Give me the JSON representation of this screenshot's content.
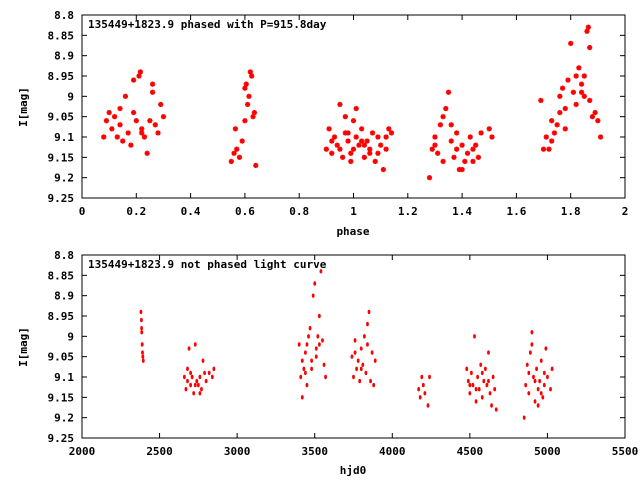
{
  "chart_data": [
    {
      "type": "scatter",
      "title": "135449+1823.9 phased with P=915.8day",
      "xlabel": "phase",
      "ylabel": "I[mag]",
      "xlim": [
        0,
        2
      ],
      "ylim": [
        9.25,
        8.8
      ],
      "y_inverted": true,
      "marker": "red-asterisk",
      "color": "#ff0000",
      "xticks": [
        "0",
        "0.2",
        "0.4",
        "0.6",
        "0.8",
        "1",
        "1.2",
        "1.4",
        "1.6",
        "1.8",
        "2"
      ],
      "yticks": [
        "8.8",
        "8.85",
        "8.9",
        "8.95",
        "9",
        "9.05",
        "9.1",
        "9.15",
        "9.2",
        "9.25"
      ],
      "points": [
        [
          0.08,
          9.1
        ],
        [
          0.09,
          9.06
        ],
        [
          0.1,
          9.04
        ],
        [
          0.11,
          9.08
        ],
        [
          0.12,
          9.05
        ],
        [
          0.13,
          9.1
        ],
        [
          0.14,
          9.07
        ],
        [
          0.15,
          9.11
        ],
        [
          0.16,
          9.0
        ],
        [
          0.17,
          9.09
        ],
        [
          0.18,
          9.12
        ],
        [
          0.19,
          9.04
        ],
        [
          0.2,
          9.06
        ],
        [
          0.21,
          8.95
        ],
        [
          0.215,
          8.94
        ],
        [
          0.22,
          9.09
        ],
        [
          0.23,
          9.1
        ],
        [
          0.24,
          9.14
        ],
        [
          0.25,
          9.06
        ],
        [
          0.26,
          8.99
        ],
        [
          0.27,
          9.07
        ],
        [
          0.28,
          9.09
        ],
        [
          0.29,
          9.02
        ],
        [
          0.3,
          9.05
        ],
        [
          0.19,
          8.96
        ],
        [
          0.26,
          8.97
        ],
        [
          0.14,
          9.03
        ],
        [
          0.22,
          9.08
        ],
        [
          0.55,
          9.16
        ],
        [
          0.56,
          9.14
        ],
        [
          0.565,
          9.08
        ],
        [
          0.57,
          9.13
        ],
        [
          0.58,
          9.15
        ],
        [
          0.59,
          9.11
        ],
        [
          0.6,
          9.06
        ],
        [
          0.605,
          8.97
        ],
        [
          0.61,
          9.02
        ],
        [
          0.615,
          9.0
        ],
        [
          0.62,
          8.94
        ],
        [
          0.625,
          8.95
        ],
        [
          0.63,
          9.05
        ],
        [
          0.635,
          9.04
        ],
        [
          0.64,
          9.17
        ],
        [
          0.6,
          8.98
        ],
        [
          0.9,
          9.13
        ],
        [
          0.91,
          9.08
        ],
        [
          0.92,
          9.14
        ],
        [
          0.93,
          9.1
        ],
        [
          0.94,
          9.12
        ],
        [
          0.95,
          9.02
        ],
        [
          0.96,
          9.15
        ],
        [
          0.97,
          9.09
        ],
        [
          0.98,
          9.11
        ],
        [
          0.99,
          9.14
        ],
        [
          1.0,
          9.06
        ],
        [
          1.01,
          9.1
        ],
        [
          1.02,
          9.12
        ],
        [
          1.03,
          9.08
        ],
        [
          1.04,
          9.15
        ],
        [
          1.05,
          9.11
        ],
        [
          1.06,
          9.13
        ],
        [
          1.07,
          9.09
        ],
        [
          1.08,
          9.16
        ],
        [
          1.09,
          9.14
        ],
        [
          1.1,
          9.12
        ],
        [
          1.11,
          9.18
        ],
        [
          1.12,
          9.1
        ],
        [
          1.13,
          9.08
        ],
        [
          0.92,
          9.11
        ],
        [
          0.95,
          9.13
        ],
        [
          0.98,
          9.09
        ],
        [
          1.0,
          9.13
        ],
        [
          1.03,
          9.11
        ],
        [
          1.06,
          9.14
        ],
        [
          1.09,
          9.1
        ],
        [
          1.12,
          9.13
        ],
        [
          0.97,
          9.05
        ],
        [
          1.01,
          9.03
        ],
        [
          1.14,
          9.09
        ],
        [
          0.99,
          9.16
        ],
        [
          1.04,
          9.12
        ],
        [
          1.28,
          9.2
        ],
        [
          1.29,
          9.13
        ],
        [
          1.3,
          9.1
        ],
        [
          1.31,
          9.14
        ],
        [
          1.32,
          9.07
        ],
        [
          1.33,
          9.16
        ],
        [
          1.34,
          9.03
        ],
        [
          1.35,
          8.99
        ],
        [
          1.36,
          9.11
        ],
        [
          1.37,
          9.15
        ],
        [
          1.38,
          9.13
        ],
        [
          1.39,
          9.18
        ],
        [
          1.4,
          9.12
        ],
        [
          1.41,
          9.16
        ],
        [
          1.42,
          9.14
        ],
        [
          1.43,
          9.1
        ],
        [
          1.44,
          9.13
        ],
        [
          1.45,
          9.12
        ],
        [
          1.46,
          9.15
        ],
        [
          1.47,
          9.09
        ],
        [
          1.5,
          9.08
        ],
        [
          1.51,
          9.1
        ],
        [
          1.33,
          9.05
        ],
        [
          1.36,
          9.07
        ],
        [
          1.4,
          9.18
        ],
        [
          1.44,
          9.16
        ],
        [
          1.3,
          9.12
        ],
        [
          1.38,
          9.09
        ],
        [
          1.69,
          9.01
        ],
        [
          1.7,
          9.13
        ],
        [
          1.71,
          9.1
        ],
        [
          1.72,
          9.13
        ],
        [
          1.73,
          9.06
        ],
        [
          1.74,
          9.09
        ],
        [
          1.75,
          9.07
        ],
        [
          1.76,
          9.04
        ],
        [
          1.77,
          8.98
        ],
        [
          1.78,
          9.03
        ],
        [
          1.79,
          8.96
        ],
        [
          1.8,
          8.87
        ],
        [
          1.81,
          8.99
        ],
        [
          1.82,
          9.02
        ],
        [
          1.83,
          8.93
        ],
        [
          1.84,
          8.97
        ],
        [
          1.85,
          8.95
        ],
        [
          1.86,
          8.84
        ],
        [
          1.865,
          8.83
        ],
        [
          1.87,
          9.01
        ],
        [
          1.88,
          9.05
        ],
        [
          1.89,
          9.04
        ],
        [
          1.9,
          9.06
        ],
        [
          1.91,
          9.1
        ],
        [
          1.87,
          8.88
        ],
        [
          1.85,
          9.0
        ],
        [
          1.78,
          9.08
        ],
        [
          1.73,
          9.11
        ],
        [
          1.82,
          8.95
        ],
        [
          1.76,
          9.0
        ],
        [
          1.84,
          8.99
        ]
      ]
    },
    {
      "type": "scatter",
      "title": "135449+1823.9 not phased light curve",
      "xlabel": "hjd0",
      "ylabel": "I[mag]",
      "xlim": [
        2000,
        5500
      ],
      "ylim": [
        9.25,
        8.8
      ],
      "y_inverted": true,
      "marker": "red-dot",
      "color": "#ff0000",
      "xticks": [
        "2000",
        "2500",
        "3000",
        "3500",
        "4000",
        "4500",
        "5000",
        "5500"
      ],
      "yticks": [
        "8.8",
        "8.85",
        "8.9",
        "8.95",
        "9",
        "9.05",
        "9.1",
        "9.15",
        "9.2",
        "9.25"
      ],
      "points": [
        [
          2380,
          8.94
        ],
        [
          2383,
          8.96
        ],
        [
          2385,
          8.99
        ],
        [
          2388,
          9.02
        ],
        [
          2390,
          9.04
        ],
        [
          2392,
          9.05
        ],
        [
          2395,
          9.06
        ],
        [
          2384,
          8.98
        ],
        [
          2660,
          9.1
        ],
        [
          2670,
          9.13
        ],
        [
          2680,
          9.08
        ],
        [
          2690,
          9.03
        ],
        [
          2700,
          9.12
        ],
        [
          2710,
          9.1
        ],
        [
          2720,
          9.14
        ],
        [
          2730,
          9.02
        ],
        [
          2740,
          9.11
        ],
        [
          2750,
          9.12
        ],
        [
          2760,
          9.1
        ],
        [
          2770,
          9.13
        ],
        [
          2780,
          9.06
        ],
        [
          2790,
          9.09
        ],
        [
          2800,
          9.11
        ],
        [
          2820,
          9.09
        ],
        [
          2840,
          9.1
        ],
        [
          2850,
          9.08
        ],
        [
          2680,
          9.11
        ],
        [
          2700,
          9.09
        ],
        [
          2730,
          9.12
        ],
        [
          2760,
          9.14
        ],
        [
          3400,
          9.02
        ],
        [
          3410,
          9.1
        ],
        [
          3420,
          9.15
        ],
        [
          3430,
          9.08
        ],
        [
          3440,
          9.04
        ],
        [
          3450,
          9.12
        ],
        [
          3460,
          9.0
        ],
        [
          3470,
          8.98
        ],
        [
          3480,
          9.06
        ],
        [
          3490,
          8.9
        ],
        [
          3500,
          8.87
        ],
        [
          3510,
          9.03
        ],
        [
          3520,
          9.0
        ],
        [
          3530,
          8.95
        ],
        [
          3540,
          8.84
        ],
        [
          3550,
          9.01
        ],
        [
          3560,
          9.07
        ],
        [
          3570,
          9.1
        ],
        [
          3420,
          9.06
        ],
        [
          3450,
          9.02
        ],
        [
          3480,
          9.08
        ],
        [
          3510,
          9.05
        ],
        [
          3530,
          9.02
        ],
        [
          3440,
          9.09
        ],
        [
          3740,
          9.05
        ],
        [
          3750,
          9.1
        ],
        [
          3760,
          9.01
        ],
        [
          3770,
          9.08
        ],
        [
          3780,
          9.06
        ],
        [
          3790,
          9.11
        ],
        [
          3800,
          9.03
        ],
        [
          3810,
          9.07
        ],
        [
          3820,
          9.0
        ],
        [
          3830,
          9.09
        ],
        [
          3840,
          8.97
        ],
        [
          3850,
          8.94
        ],
        [
          3860,
          9.11
        ],
        [
          3870,
          9.04
        ],
        [
          3880,
          9.12
        ],
        [
          3890,
          9.06
        ],
        [
          3760,
          9.04
        ],
        [
          3800,
          9.08
        ],
        [
          3840,
          9.02
        ],
        [
          4170,
          9.13
        ],
        [
          4180,
          9.15
        ],
        [
          4190,
          9.1
        ],
        [
          4200,
          9.12
        ],
        [
          4210,
          9.14
        ],
        [
          4230,
          9.17
        ],
        [
          4240,
          9.1
        ],
        [
          4480,
          9.08
        ],
        [
          4490,
          9.11
        ],
        [
          4500,
          9.14
        ],
        [
          4510,
          9.09
        ],
        [
          4520,
          9.12
        ],
        [
          4530,
          9.0
        ],
        [
          4540,
          9.16
        ],
        [
          4550,
          9.1
        ],
        [
          4560,
          9.13
        ],
        [
          4570,
          9.07
        ],
        [
          4580,
          9.15
        ],
        [
          4590,
          9.11
        ],
        [
          4600,
          9.08
        ],
        [
          4610,
          9.12
        ],
        [
          4620,
          9.04
        ],
        [
          4630,
          9.14
        ],
        [
          4640,
          9.17
        ],
        [
          4650,
          9.1
        ],
        [
          4660,
          9.13
        ],
        [
          4670,
          9.18
        ],
        [
          4500,
          9.12
        ],
        [
          4540,
          9.13
        ],
        [
          4580,
          9.09
        ],
        [
          4620,
          9.11
        ],
        [
          4850,
          9.2
        ],
        [
          4860,
          9.12
        ],
        [
          4870,
          9.07
        ],
        [
          4880,
          9.14
        ],
        [
          4890,
          9.04
        ],
        [
          4900,
          8.99
        ],
        [
          4910,
          9.1
        ],
        [
          4920,
          9.16
        ],
        [
          4930,
          9.08
        ],
        [
          4940,
          9.13
        ],
        [
          4950,
          9.11
        ],
        [
          4960,
          9.06
        ],
        [
          4970,
          9.15
        ],
        [
          4980,
          9.12
        ],
        [
          4990,
          9.03
        ],
        [
          5000,
          9.1
        ],
        [
          5020,
          9.13
        ],
        [
          5030,
          9.08
        ],
        [
          4880,
          9.09
        ],
        [
          4920,
          9.11
        ],
        [
          4960,
          9.14
        ],
        [
          4900,
          9.02
        ],
        [
          4940,
          9.17
        ],
        [
          4980,
          9.09
        ]
      ]
    }
  ]
}
